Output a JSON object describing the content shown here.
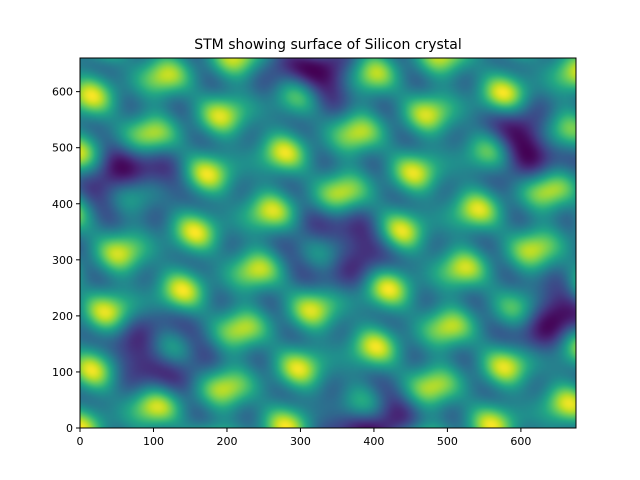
{
  "chart_data": {
    "type": "heatmap",
    "title": "STM showing surface of Silicon crystal",
    "xlabel": "",
    "ylabel": "",
    "xlim": [
      0,
      675
    ],
    "ylim": [
      0,
      660
    ],
    "x_ticks": [
      0,
      100,
      200,
      300,
      400,
      500,
      600
    ],
    "y_ticks": [
      0,
      100,
      200,
      300,
      400,
      500,
      600
    ],
    "grid": false,
    "legend": "none",
    "colormap": "viridis",
    "colors": {
      "low": "#440154",
      "mid": "#21918c",
      "high": "#fde725"
    },
    "pattern": "hexagonal lattice of bright adatom spots arranged in rings around dark hollow sites",
    "dark_sites_approx": [
      [
        75,
        410
      ],
      [
        120,
        145
      ],
      [
        355,
        320
      ],
      [
        320,
        590
      ],
      [
        395,
        35
      ],
      [
        600,
        495
      ],
      [
        635,
        220
      ]
    ]
  }
}
